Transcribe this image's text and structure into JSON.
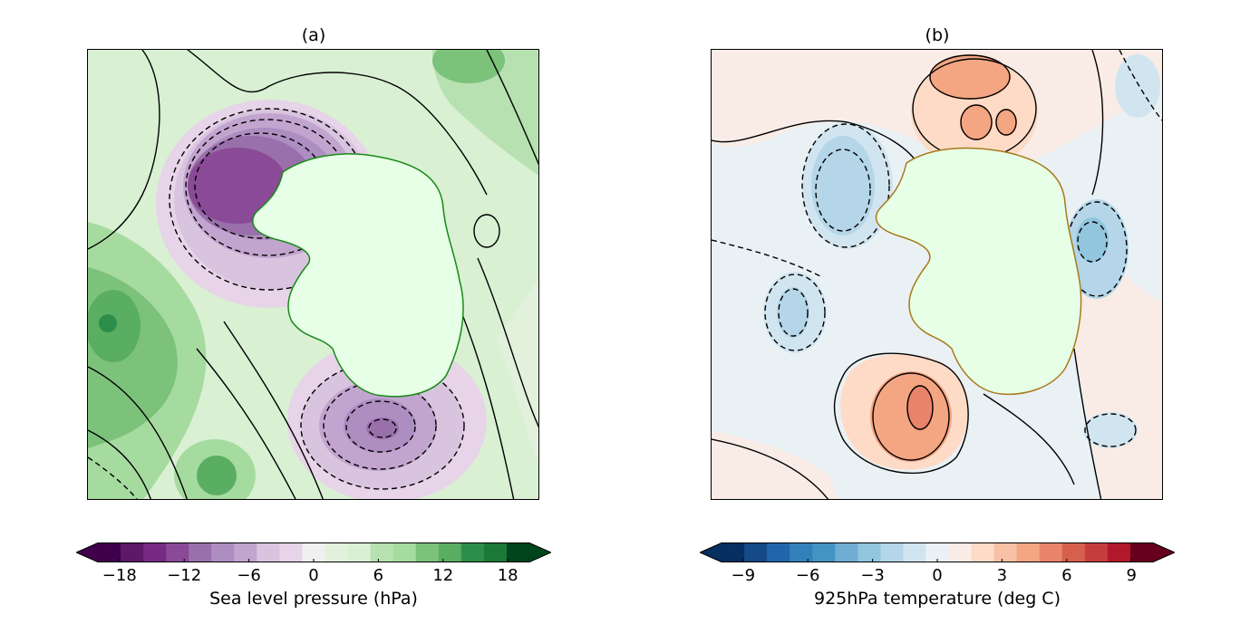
{
  "panels": {
    "a": {
      "title": "(a)",
      "colorbar": {
        "label": "Sea level pressure (hPa)",
        "ticks": [
          "−18",
          "−12",
          "−6",
          "0",
          "6",
          "12",
          "18"
        ],
        "colors": [
          "#40004b",
          "#5e1868",
          "#762a83",
          "#8a4a97",
          "#9970ab",
          "#ae8dc1",
          "#c2a5cf",
          "#d9c4e0",
          "#e7d4e8",
          "#f0f0f0",
          "#e1f1dc",
          "#d9f0d3",
          "#b7e1b0",
          "#a6dba0",
          "#7cc27a",
          "#5aae61",
          "#2d8d4a",
          "#1b7837",
          "#00441b"
        ],
        "extend": "both",
        "range": [
          -20,
          20
        ]
      }
    },
    "b": {
      "title": "(b)",
      "colorbar": {
        "label": "925hPa temperature (deg C)",
        "ticks": [
          "−9",
          "−6",
          "−3",
          "0",
          "3",
          "6",
          "9"
        ],
        "colors": [
          "#053061",
          "#134a87",
          "#2166ac",
          "#3480bb",
          "#4393c3",
          "#6fadd2",
          "#92c5de",
          "#b4d6e8",
          "#d1e5f0",
          "#eaf1f5",
          "#f9ece6",
          "#fddbc7",
          "#f8c0a5",
          "#f4a582",
          "#e8846b",
          "#d6604d",
          "#c53e3d",
          "#b2182b",
          "#67001f"
        ],
        "extend": "both",
        "range": [
          -10,
          10
        ]
      }
    }
  }
}
